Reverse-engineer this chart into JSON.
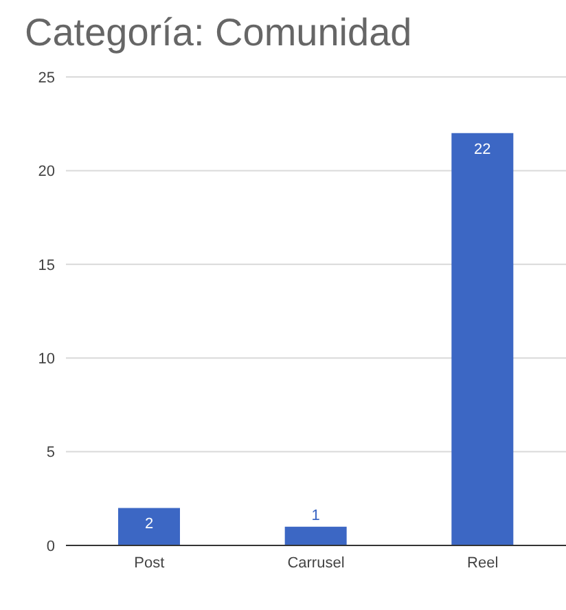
{
  "chart_data": {
    "type": "bar",
    "title": "Categoría: Comunidad",
    "categories": [
      "Post",
      "Carrusel",
      "Reel"
    ],
    "values": [
      2,
      1,
      22
    ],
    "color": "#3c67c4",
    "ylim": [
      0,
      25
    ],
    "yticks": [
      0,
      5,
      10,
      15,
      20,
      25
    ],
    "grid": "y",
    "data_labels": true
  }
}
